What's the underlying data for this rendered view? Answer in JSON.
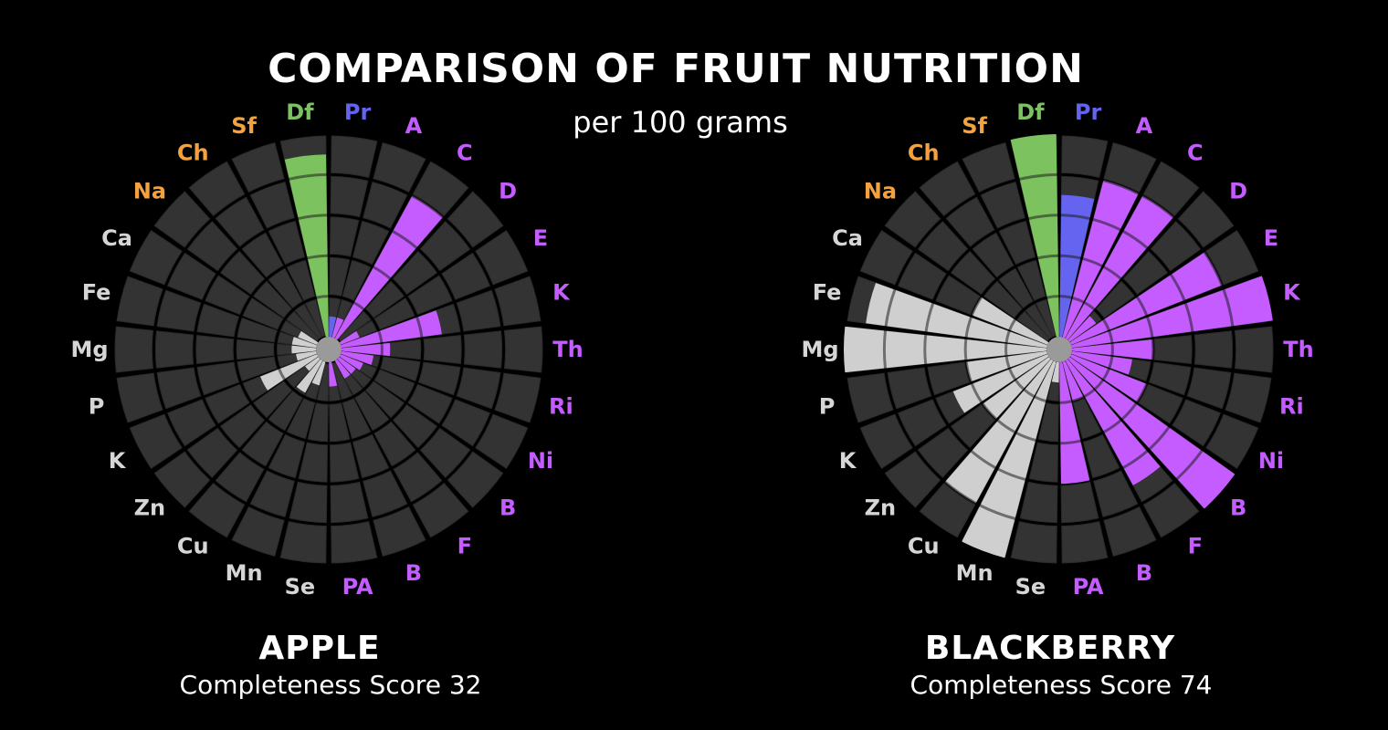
{
  "title": "COMPARISON OF FRUIT NUTRITION",
  "subtitle": "per 100 grams",
  "colors": {
    "background": "#000000",
    "empty_block": "#333333",
    "macronutrient": "#f4a140",
    "fiber": "#7cc35f",
    "protein": "#6464f0",
    "vitamin": "#c45cff",
    "mineral": "#cfcfcf"
  },
  "chart_data": [
    {
      "type": "radial-bar",
      "name": "APPLE",
      "score_label": "Completeness Score 32",
      "score": 32,
      "rlim": [
        0,
        5
      ],
      "categories": [
        "Pr",
        "A",
        "C",
        "D",
        "E",
        "K",
        "Th",
        "Ri",
        "Ni",
        "B",
        "F",
        "B",
        "PA",
        "Se",
        "Mn",
        "Cu",
        "Zn",
        "K",
        "P",
        "Mg",
        "Fe",
        "Ca",
        "Na",
        "Ch",
        "Sf",
        "Df"
      ],
      "groups": [
        "protein",
        "vitamin",
        "vitamin",
        "vitamin",
        "vitamin",
        "vitamin",
        "vitamin",
        "vitamin",
        "vitamin",
        "vitamin",
        "vitamin",
        "vitamin",
        "vitamin",
        "mineral",
        "mineral",
        "mineral",
        "mineral",
        "mineral",
        "mineral",
        "mineral",
        "mineral",
        "mineral",
        "macronutrient",
        "macronutrient",
        "macronutrient",
        "fiber"
      ],
      "values": [
        0.5,
        0.5,
        4.0,
        0,
        0.5,
        2.5,
        1.2,
        0.8,
        0.6,
        0.5,
        0.5,
        0,
        0.6,
        0,
        0.6,
        0.9,
        0.4,
        1.5,
        0.5,
        0.6,
        0.6,
        0.5,
        0,
        0,
        0,
        4.5
      ]
    },
    {
      "type": "radial-bar",
      "name": "BLACKBERRY",
      "score_label": "Completeness Score 74",
      "score": 74,
      "rlim": [
        0,
        5
      ],
      "categories": [
        "Pr",
        "A",
        "C",
        "D",
        "E",
        "K",
        "Th",
        "Ri",
        "Ni",
        "B",
        "F",
        "B",
        "PA",
        "Se",
        "Mn",
        "Cu",
        "Zn",
        "K",
        "P",
        "Mg",
        "Fe",
        "Ca",
        "Na",
        "Ch",
        "Sf",
        "Df"
      ],
      "groups": [
        "protein",
        "vitamin",
        "vitamin",
        "vitamin",
        "vitamin",
        "vitamin",
        "vitamin",
        "vitamin",
        "vitamin",
        "vitamin",
        "vitamin",
        "vitamin",
        "vitamin",
        "mineral",
        "mineral",
        "mineral",
        "mineral",
        "mineral",
        "mineral",
        "mineral",
        "mineral",
        "mineral",
        "macronutrient",
        "macronutrient",
        "macronutrient",
        "fiber"
      ],
      "values": [
        3.5,
        4.0,
        4.0,
        0.8,
        4.0,
        5.0,
        2.0,
        1.5,
        2.0,
        5.0,
        3.5,
        1.0,
        3.0,
        0.5,
        5.0,
        4.0,
        2.0,
        2.5,
        2.0,
        5.0,
        4.5,
        2.0,
        0,
        0,
        0,
        5.0
      ]
    }
  ]
}
